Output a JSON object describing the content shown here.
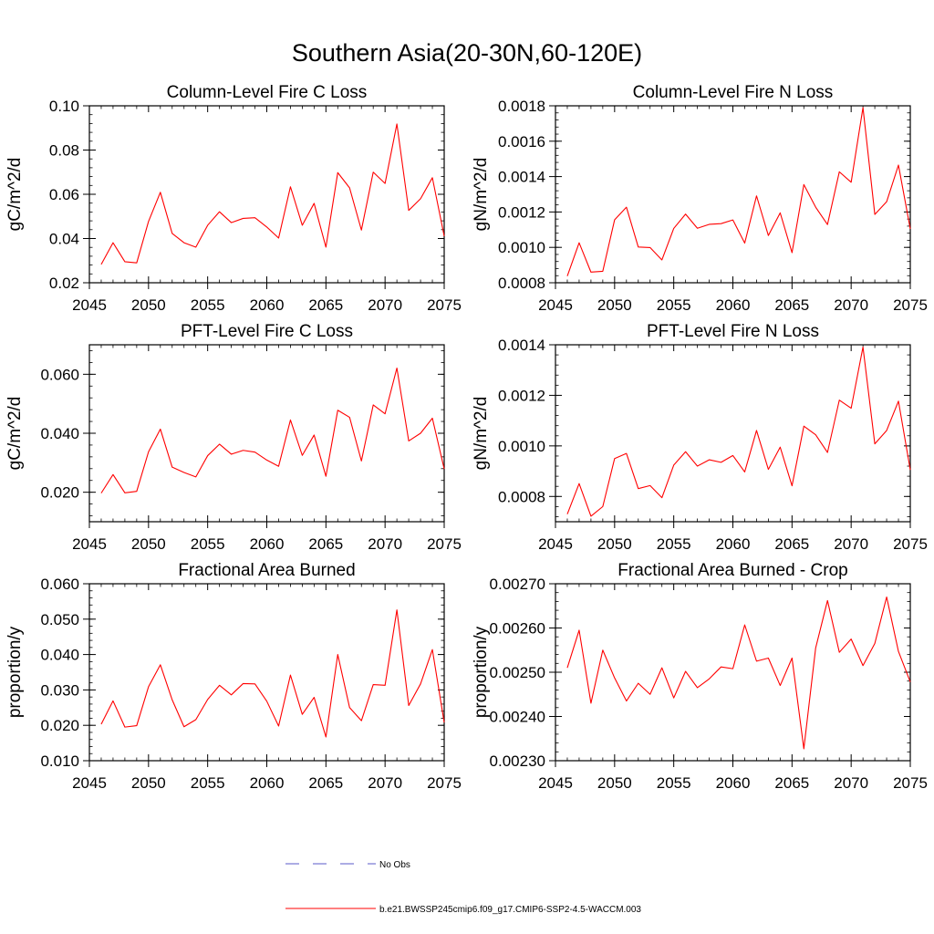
{
  "page_title": "Southern Asia(20-30N,60-120E)",
  "legend": {
    "entries": [
      {
        "label": "No Obs",
        "color": "#5a5ac8",
        "style": "dashed"
      },
      {
        "label": "b.e21.BWSSP245cmip6.f09_g17.CMIP6-SSP2-4.5-WACCM.003",
        "color": "#ff0000",
        "style": "solid"
      }
    ]
  },
  "chart_data": [
    {
      "type": "line",
      "title": "Column-Level Fire C Loss",
      "ylabel": "gC/m^2/d",
      "xlim": [
        2045,
        2075
      ],
      "ylim": [
        0.02,
        0.1
      ],
      "xticks": [
        2045,
        2050,
        2055,
        2060,
        2065,
        2070,
        2075
      ],
      "yticks": [
        0.02,
        0.04,
        0.06,
        0.08,
        0.1
      ],
      "ytick_labels": [
        "0.02",
        "0.04",
        "0.06",
        "0.08",
        "0.10"
      ],
      "x": [
        2046,
        2047,
        2048,
        2049,
        2050,
        2051,
        2052,
        2053,
        2054,
        2055,
        2056,
        2057,
        2058,
        2059,
        2060,
        2061,
        2062,
        2063,
        2064,
        2065,
        2066,
        2067,
        2068,
        2069,
        2070,
        2071,
        2072,
        2073,
        2074,
        2075
      ],
      "series": [
        {
          "color": "#ff0000",
          "values": [
            0.0283,
            0.0381,
            0.0295,
            0.029,
            0.0477,
            0.0609,
            0.0423,
            0.0381,
            0.0361,
            0.046,
            0.0521,
            0.0472,
            0.0491,
            0.0494,
            0.0452,
            0.0402,
            0.0634,
            0.046,
            0.0559,
            0.0361,
            0.0698,
            0.0629,
            0.0438,
            0.07,
            0.0649,
            0.0918,
            0.0527,
            0.058,
            0.0675,
            0.0411
          ]
        }
      ]
    },
    {
      "type": "line",
      "title": "Column-Level Fire N Loss",
      "ylabel": "gN/m^2/d",
      "xlim": [
        2045,
        2075
      ],
      "ylim": [
        0.0008,
        0.0018
      ],
      "xticks": [
        2045,
        2050,
        2055,
        2060,
        2065,
        2070,
        2075
      ],
      "yticks": [
        0.0008,
        0.001,
        0.0012,
        0.0014,
        0.0016,
        0.0018
      ],
      "ytick_labels": [
        "0.0008",
        "0.0010",
        "0.0012",
        "0.0014",
        "0.0016",
        "0.0018"
      ],
      "x": [
        2046,
        2047,
        2048,
        2049,
        2050,
        2051,
        2052,
        2053,
        2054,
        2055,
        2056,
        2057,
        2058,
        2059,
        2060,
        2061,
        2062,
        2063,
        2064,
        2065,
        2066,
        2067,
        2068,
        2069,
        2070,
        2071,
        2072,
        2073,
        2074,
        2075
      ],
      "series": [
        {
          "color": "#ff0000",
          "values": [
            0.000838,
            0.001026,
            0.00086,
            0.000865,
            0.001156,
            0.001227,
            0.001002,
            0.000999,
            0.000929,
            0.001107,
            0.001188,
            0.001108,
            0.00113,
            0.001134,
            0.001155,
            0.001024,
            0.001291,
            0.001067,
            0.001195,
            0.00097,
            0.001355,
            0.001227,
            0.001129,
            0.001427,
            0.001368,
            0.00179,
            0.001186,
            0.001258,
            0.001465,
            0.001104
          ]
        }
      ]
    },
    {
      "type": "line",
      "title": "PFT-Level Fire C Loss",
      "ylabel": "gC/m^2/d",
      "xlim": [
        2045,
        2075
      ],
      "ylim": [
        0.01,
        0.07
      ],
      "xticks": [
        2045,
        2050,
        2055,
        2060,
        2065,
        2070,
        2075
      ],
      "yticks": [
        0.02,
        0.04,
        0.06
      ],
      "ytick_labels": [
        "0.020",
        "0.040",
        "0.060"
      ],
      "x": [
        2046,
        2047,
        2048,
        2049,
        2050,
        2051,
        2052,
        2053,
        2054,
        2055,
        2056,
        2057,
        2058,
        2059,
        2060,
        2061,
        2062,
        2063,
        2064,
        2065,
        2066,
        2067,
        2068,
        2069,
        2070,
        2071,
        2072,
        2073,
        2074,
        2075
      ],
      "series": [
        {
          "color": "#ff0000",
          "values": [
            0.0197,
            0.026,
            0.0198,
            0.0203,
            0.0337,
            0.0414,
            0.0285,
            0.0267,
            0.0252,
            0.0324,
            0.0363,
            0.0329,
            0.0342,
            0.0336,
            0.0309,
            0.0288,
            0.0445,
            0.0325,
            0.0394,
            0.0254,
            0.0478,
            0.0454,
            0.0306,
            0.0496,
            0.0466,
            0.0621,
            0.0374,
            0.04,
            0.0451,
            0.0279
          ]
        }
      ]
    },
    {
      "type": "line",
      "title": "PFT-Level Fire N Loss",
      "ylabel": "gN/m^2/d",
      "xlim": [
        2045,
        2075
      ],
      "ylim": [
        0.0007,
        0.0014
      ],
      "xticks": [
        2045,
        2050,
        2055,
        2060,
        2065,
        2070,
        2075
      ],
      "yticks": [
        0.0008,
        0.001,
        0.0012,
        0.0014
      ],
      "ytick_labels": [
        "0.0008",
        "0.0010",
        "0.0012",
        "0.0014"
      ],
      "x": [
        2046,
        2047,
        2048,
        2049,
        2050,
        2051,
        2052,
        2053,
        2054,
        2055,
        2056,
        2057,
        2058,
        2059,
        2060,
        2061,
        2062,
        2063,
        2064,
        2065,
        2066,
        2067,
        2068,
        2069,
        2070,
        2071,
        2072,
        2073,
        2074,
        2075
      ],
      "series": [
        {
          "color": "#ff0000",
          "values": [
            0.00073,
            0.000851,
            0.000722,
            0.00076,
            0.00095,
            0.00097,
            0.000831,
            0.000843,
            0.000795,
            0.000924,
            0.000977,
            0.00092,
            0.000945,
            0.000935,
            0.000962,
            0.000897,
            0.001061,
            0.000907,
            0.000995,
            0.000842,
            0.001078,
            0.001044,
            0.000974,
            0.001181,
            0.001149,
            0.001391,
            0.001008,
            0.001061,
            0.001177,
            0.000905
          ]
        }
      ]
    },
    {
      "type": "line",
      "title": "Fractional Area Burned",
      "ylabel": "proportion/y",
      "xlim": [
        2045,
        2075
      ],
      "ylim": [
        0.01,
        0.06
      ],
      "xticks": [
        2045,
        2050,
        2055,
        2060,
        2065,
        2070,
        2075
      ],
      "yticks": [
        0.01,
        0.02,
        0.03,
        0.04,
        0.05,
        0.06
      ],
      "ytick_labels": [
        "0.010",
        "0.020",
        "0.030",
        "0.040",
        "0.050",
        "0.060"
      ],
      "x": [
        2046,
        2047,
        2048,
        2049,
        2050,
        2051,
        2052,
        2053,
        2054,
        2055,
        2056,
        2057,
        2058,
        2059,
        2060,
        2061,
        2062,
        2063,
        2064,
        2065,
        2066,
        2067,
        2068,
        2069,
        2070,
        2071,
        2072,
        2073,
        2074,
        2075
      ],
      "series": [
        {
          "color": "#ff0000",
          "values": [
            0.0203,
            0.0269,
            0.0195,
            0.0199,
            0.0309,
            0.0371,
            0.0272,
            0.0196,
            0.0216,
            0.0273,
            0.0313,
            0.0286,
            0.0318,
            0.0317,
            0.0268,
            0.0198,
            0.0342,
            0.0231,
            0.0279,
            0.0167,
            0.04,
            0.025,
            0.0213,
            0.0315,
            0.0313,
            0.0526,
            0.0256,
            0.0317,
            0.0414,
            0.0208
          ]
        }
      ]
    },
    {
      "type": "line",
      "title": "Fractional Area Burned - Crop",
      "ylabel": "proportion/y",
      "xlim": [
        2045,
        2075
      ],
      "ylim": [
        0.0023,
        0.0027
      ],
      "xticks": [
        2045,
        2050,
        2055,
        2060,
        2065,
        2070,
        2075
      ],
      "yticks": [
        0.0023,
        0.0024,
        0.0025,
        0.0026,
        0.0027
      ],
      "ytick_labels": [
        "0.00230",
        "0.00240",
        "0.00250",
        "0.00260",
        "0.00270"
      ],
      "x": [
        2046,
        2047,
        2048,
        2049,
        2050,
        2051,
        2052,
        2053,
        2054,
        2055,
        2056,
        2057,
        2058,
        2059,
        2060,
        2061,
        2062,
        2063,
        2064,
        2065,
        2066,
        2067,
        2068,
        2069,
        2070,
        2071,
        2072,
        2073,
        2074,
        2075
      ],
      "series": [
        {
          "color": "#ff0000",
          "values": [
            0.00251,
            0.002595,
            0.00243,
            0.00255,
            0.002487,
            0.002435,
            0.002475,
            0.00245,
            0.00251,
            0.002442,
            0.002502,
            0.002465,
            0.002485,
            0.002512,
            0.002508,
            0.002607,
            0.002525,
            0.002532,
            0.00247,
            0.002532,
            0.002327,
            0.002555,
            0.002662,
            0.002545,
            0.002575,
            0.002515,
            0.002565,
            0.00267,
            0.002547,
            0.002478
          ]
        }
      ]
    }
  ]
}
